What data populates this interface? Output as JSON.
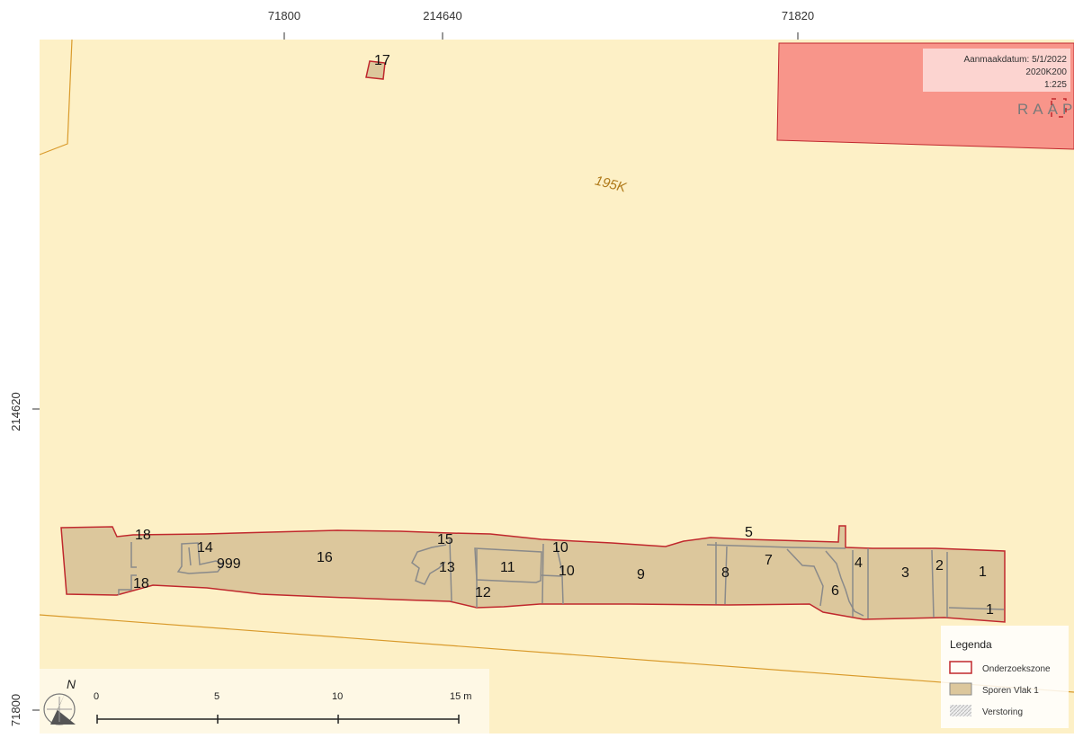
{
  "colors": {
    "background": "#fdf0c6",
    "onderzoekszone_stroke": "#c0282d",
    "sporen_fill": "#dcc79c",
    "sporen_stroke": "#8a8a8a",
    "parcel_line": "#d99a2b",
    "red_zone": "#f8958a",
    "parcel_label": "#b07a1a"
  },
  "coordinates": {
    "top": [
      "71800",
      "214640",
      "71820"
    ],
    "left": [
      "214620",
      "71800"
    ]
  },
  "parcel_label": "195K",
  "info_box": {
    "date_line": "Aanmaakdatum: 5/1/2022",
    "project": "2020K200",
    "scale": "1:225",
    "logo": "RAAP"
  },
  "features": [
    {
      "id": "f17",
      "label": "17"
    },
    {
      "id": "f18a",
      "label": "18"
    },
    {
      "id": "f18b",
      "label": "18"
    },
    {
      "id": "f14",
      "label": "14"
    },
    {
      "id": "f999",
      "label": "999"
    },
    {
      "id": "f16",
      "label": "16"
    },
    {
      "id": "f15",
      "label": "15"
    },
    {
      "id": "f13",
      "label": "13"
    },
    {
      "id": "f11",
      "label": "11"
    },
    {
      "id": "f12",
      "label": "12"
    },
    {
      "id": "f10a",
      "label": "10"
    },
    {
      "id": "f10b",
      "label": "10"
    },
    {
      "id": "f9",
      "label": "9"
    },
    {
      "id": "f8",
      "label": "8"
    },
    {
      "id": "f5",
      "label": "5"
    },
    {
      "id": "f7",
      "label": "7"
    },
    {
      "id": "f6",
      "label": "6"
    },
    {
      "id": "f4",
      "label": "4"
    },
    {
      "id": "f3",
      "label": "3"
    },
    {
      "id": "f2",
      "label": "2"
    },
    {
      "id": "f1a",
      "label": "1"
    },
    {
      "id": "f1b",
      "label": "1"
    }
  ],
  "scale_bar": {
    "ticks": [
      "0",
      "5",
      "10",
      "15 m"
    ]
  },
  "north_label": "N",
  "legend": {
    "title": "Legenda",
    "items": [
      {
        "label": "Onderzoekszone",
        "icon": "outline-red"
      },
      {
        "label": "Sporen Vlak 1",
        "icon": "filled-tan"
      },
      {
        "label": "Verstoring",
        "icon": "hatched-grey"
      }
    ]
  }
}
